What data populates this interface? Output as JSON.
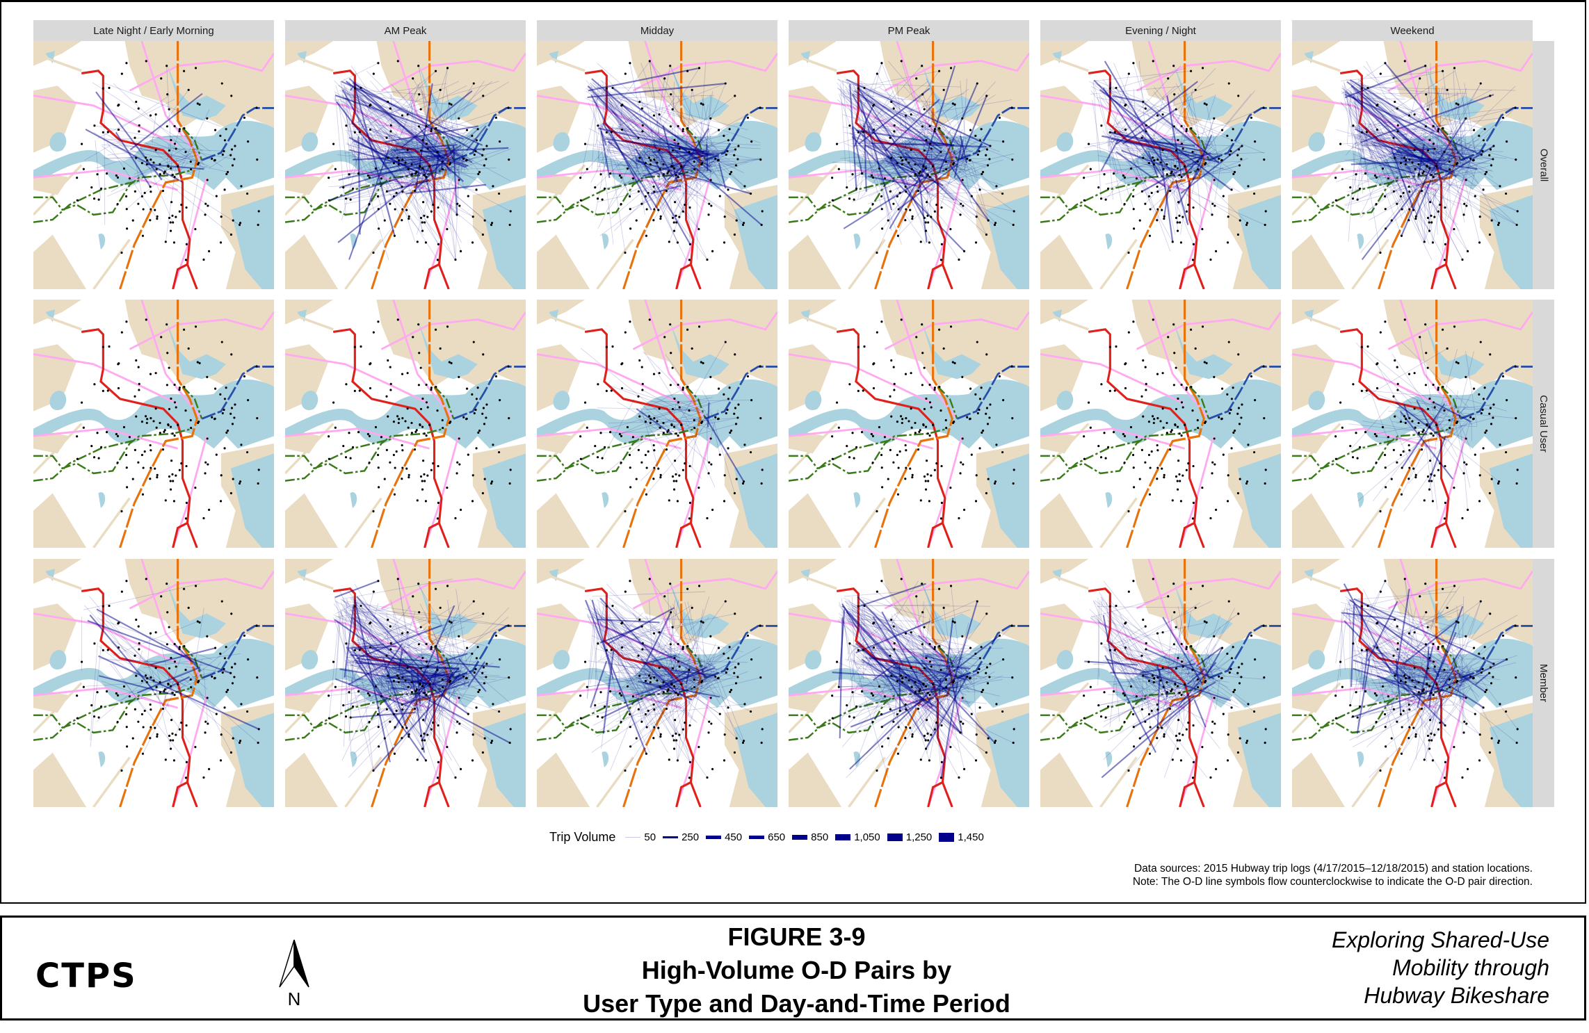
{
  "columns": [
    "Late Night / Early Morning",
    "AM Peak",
    "Midday",
    "PM Peak",
    "Evening / Night",
    "Weekend"
  ],
  "rows": [
    "Overall",
    "Casual User",
    "Member"
  ],
  "legend": {
    "title": "Trip Volume",
    "values": [
      "50",
      "250",
      "450",
      "650",
      "850",
      "1,050",
      "1,250",
      "1,450"
    ],
    "color": "#00008b"
  },
  "notes": {
    "line1": "Data sources: 2015 Hubway trip logs (4/17/2015–12/18/2015) and station locations.",
    "line2": "Note: The O-D line symbols flow counterclockwise to indicate the O-D pair direction."
  },
  "colors": {
    "land": "#eadcc2",
    "water": "#aad3df",
    "red_line": "#e0201b",
    "orange_line": "#e8720c",
    "blue_line": "#2850a8",
    "green_line": "#3a7a1a",
    "commuter_rail": "#ffaaf0",
    "od_lines": "#00008b"
  },
  "footer": {
    "logo": "CTPS",
    "north_label": "N",
    "figure": "FIGURE 3-9",
    "title_line1": "High-Volume O-D Pairs by",
    "title_line2": "User Type and Day-and-Time Period",
    "project_line1": "Exploring Shared-Use",
    "project_line2": "Mobility through",
    "project_line3": "Hubway Bikeshare"
  }
}
